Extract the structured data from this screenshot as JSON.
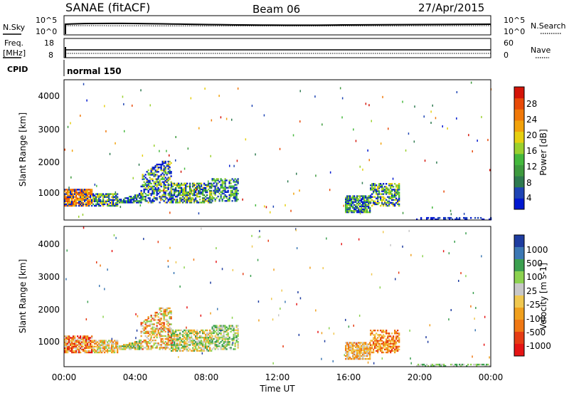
{
  "header": {
    "station": "SANAE (fitACF)",
    "beam": "Beam 06",
    "date": "27/Apr/2015"
  },
  "noise_panel": {
    "left_label": "N.Sky",
    "left_ticks": [
      "10^5",
      "10^0"
    ],
    "right_label": "N.Search",
    "right_ticks": [
      "10^5",
      "10^0"
    ]
  },
  "freq_panel": {
    "left_label_1": "Freq.",
    "left_label_2": "[MHz]",
    "left_ticks": [
      "18",
      "8"
    ],
    "right_label": "Nave",
    "right_ticks": [
      "60",
      "0"
    ]
  },
  "cpid": {
    "label": "CPID",
    "mode": "normal 150"
  },
  "chart_data": [
    {
      "type": "heatmap",
      "quantity": "Power",
      "ylabel": "Slant Range [km]",
      "ylim": [
        180,
        4500
      ],
      "yticks": [
        "4000",
        "3000",
        "2000",
        "1000"
      ],
      "xlim": [
        0,
        24
      ],
      "colorbar": {
        "label": "Power [dB]",
        "range": [
          0,
          30
        ],
        "ticks": [
          "28",
          "24",
          "20",
          "16",
          "12",
          "8",
          "4"
        ],
        "colors": [
          "#0018d0",
          "#1e44b4",
          "#2e7a50",
          "#3e9a3e",
          "#44b83c",
          "#9ad02e",
          "#e6cf10",
          "#f2a20a",
          "#f07808",
          "#e84a08",
          "#d41408"
        ]
      },
      "echo_regions": [
        {
          "t": [
            0.0,
            1.6
          ],
          "r": [
            600,
            1100
          ],
          "value": "18-22 dB"
        },
        {
          "t": [
            1.6,
            3.0
          ],
          "r": [
            600,
            1000
          ],
          "value": "8-14 dB"
        },
        {
          "t": [
            3.0,
            6.0
          ],
          "r": [
            650,
            2000
          ],
          "value": "6-14 dB"
        },
        {
          "t": [
            6.0,
            9.8
          ],
          "r": [
            700,
            1450
          ],
          "value": "4-14 dB"
        },
        {
          "t": [
            15.8,
            18.8
          ],
          "r": [
            400,
            1300
          ],
          "value": "4-12 dB"
        }
      ]
    },
    {
      "type": "heatmap",
      "quantity": "Velocity",
      "ylabel": "Slant Range [km]",
      "ylim": [
        180,
        4500
      ],
      "yticks": [
        "4000",
        "3000",
        "2000",
        "1000"
      ],
      "xlim": [
        0,
        24
      ],
      "xlabel": "Time UT",
      "xticks": [
        "00:00",
        "04:00",
        "08:00",
        "12:00",
        "16:00",
        "20:00",
        "00:00"
      ],
      "colorbar": {
        "label": "Velocity [m s-1]",
        "ticks": [
          "1000",
          "500",
          "100",
          "25",
          "-25",
          "-100",
          "-500",
          "-1000"
        ],
        "colors": [
          "#1e3ca0",
          "#3c78b4",
          "#3ca050",
          "#8cd250",
          "#c8c8c8",
          "#f0c850",
          "#f0a01e",
          "#f07814",
          "#e63c14",
          "#e61414"
        ]
      },
      "echo_regions": [
        {
          "t": [
            0.0,
            1.6
          ],
          "r": [
            600,
            1100
          ],
          "value": "-25 to -500 m/s"
        },
        {
          "t": [
            3.0,
            6.0
          ],
          "r": [
            650,
            2000
          ],
          "value": "-500 to 100 m/s"
        },
        {
          "t": [
            6.0,
            9.8
          ],
          "r": [
            650,
            1450
          ],
          "value": "-25 to 100 m/s"
        },
        {
          "t": [
            15.8,
            18.8
          ],
          "r": [
            400,
            1300
          ],
          "value": "-100 to -500 m/s"
        }
      ]
    }
  ]
}
